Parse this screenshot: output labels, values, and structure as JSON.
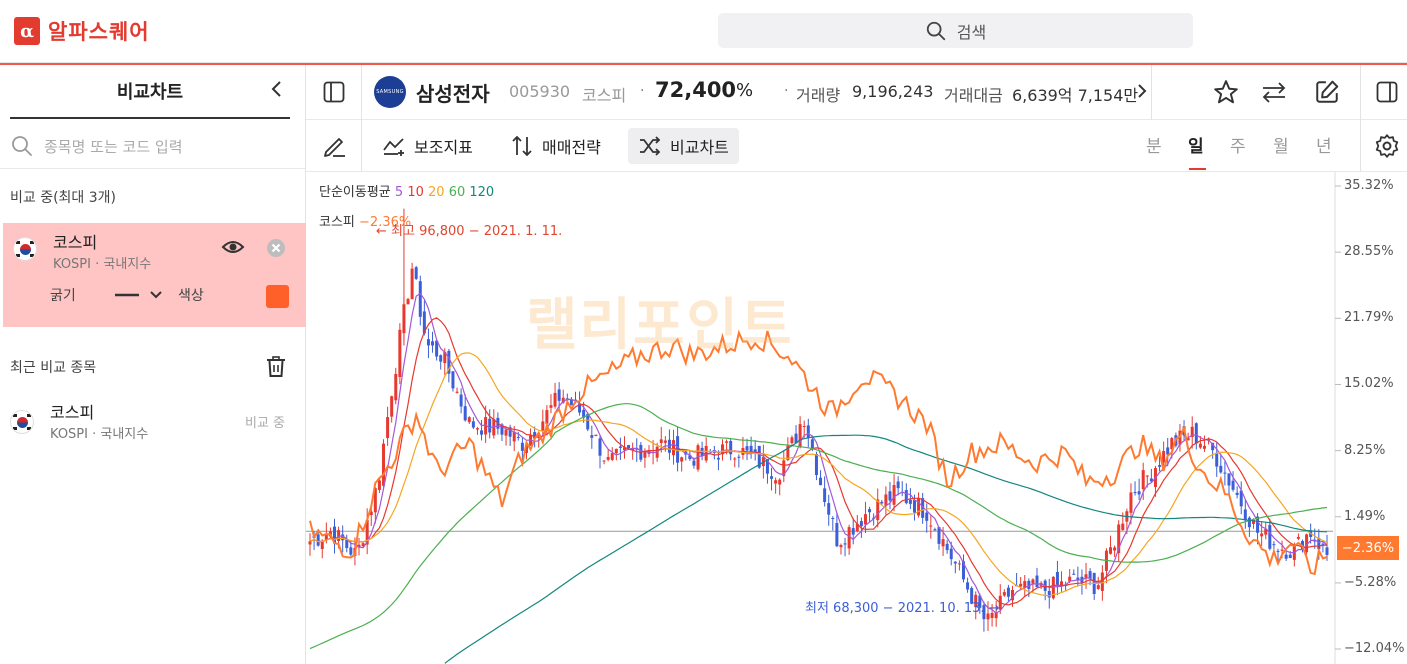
{
  "header": {
    "logo_glyph": "α",
    "app_name": "알파스퀘어",
    "search_label": "검색"
  },
  "sidebar": {
    "title": "비교차트",
    "search_placeholder": "종목명 또는 코드 입력",
    "comparing_label": "비교 중(최대 3개)",
    "active_item": {
      "name": "코스피",
      "sub": "KOSPI · 국내지수",
      "thickness_label": "굵기",
      "color_label": "색상",
      "color": "#ff5f28"
    },
    "recent_label": "최근 비교 종목",
    "recent_items": [
      {
        "name": "코스피",
        "sub": "KOSPI · 국내지수",
        "status": "비교 중"
      }
    ]
  },
  "stock": {
    "name": "삼성전자",
    "logo_text": "SAMSUNG",
    "code": "005930",
    "market": "코스피",
    "price": "72,400",
    "pct": "%",
    "volume_label": "거래량",
    "volume": "9,196,243",
    "amount_label": "거래대금",
    "amount": "6,639억 7,154만"
  },
  "toolbar": {
    "indicator_label": "보조지표",
    "strategy_label": "매매전략",
    "compare_label": "비교차트",
    "periods": [
      "분",
      "일",
      "주",
      "월",
      "년"
    ],
    "active_period": "일"
  },
  "chart_data": {
    "type": "candlestick",
    "ma_legend_title": "단순이동평균",
    "ma_periods": [
      {
        "label": "5",
        "color": "#a259d9"
      },
      {
        "label": "10",
        "color": "#e8382f"
      },
      {
        "label": "20",
        "color": "#f5a623"
      },
      {
        "label": "60",
        "color": "#4caf50"
      },
      {
        "label": "120",
        "color": "#13877e"
      }
    ],
    "compare_legend": "코스피",
    "compare_value": "−2.36%",
    "compare_color": "#ff7a2f",
    "y_ticks": [
      "35.32%",
      "28.55%",
      "21.79%",
      "15.02%",
      "8.25%",
      "1.49%",
      "−5.28%",
      "−12.04%"
    ],
    "y_range": [
      -12.04,
      35.32
    ],
    "current_marker": "−2.36%",
    "high_annotation": "← 최고 96,800 − 2021. 1. 11.",
    "low_annotation": "최저 68,300 − 2021. 10. 13. →",
    "watermark": "랠리포인트"
  }
}
